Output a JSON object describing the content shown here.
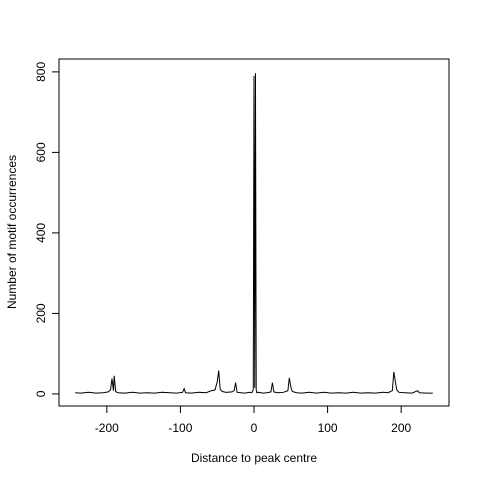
{
  "chart_data": {
    "type": "line",
    "x_label": "Distance to peak centre",
    "y_label": "Number of motif occurrences",
    "color": "#000000",
    "x": [
      -243,
      -235,
      -225,
      -215,
      -205,
      -198,
      -195,
      -193,
      -191,
      -190,
      -188,
      -185,
      -175,
      -165,
      -155,
      -145,
      -135,
      -125,
      -115,
      -105,
      -97,
      -95,
      -93,
      -85,
      -75,
      -65,
      -58,
      -53,
      -50,
      -48,
      -46,
      -43,
      -38,
      -30,
      -27,
      -25,
      -23,
      -18,
      -12,
      -6,
      -3,
      -1,
      0,
      1,
      2,
      3,
      4,
      6,
      12,
      18,
      23,
      25,
      27,
      32,
      40,
      46,
      48,
      50,
      52,
      58,
      65,
      75,
      85,
      95,
      105,
      115,
      125,
      135,
      145,
      155,
      165,
      175,
      182,
      188,
      190,
      192,
      194,
      197,
      205,
      215,
      222,
      225,
      235,
      243
    ],
    "values": [
      3,
      2,
      4,
      2,
      3,
      5,
      10,
      38,
      8,
      45,
      6,
      3,
      2,
      4,
      2,
      3,
      2,
      4,
      3,
      2,
      4,
      13,
      3,
      2,
      4,
      3,
      8,
      10,
      30,
      58,
      12,
      6,
      4,
      5,
      8,
      28,
      4,
      3,
      2,
      4,
      3,
      10,
      790,
      15,
      797,
      10,
      3,
      4,
      2,
      3,
      5,
      28,
      5,
      3,
      4,
      8,
      40,
      18,
      6,
      3,
      2,
      4,
      2,
      4,
      2,
      3,
      2,
      4,
      2,
      3,
      2,
      4,
      3,
      8,
      55,
      32,
      10,
      4,
      3,
      2,
      8,
      3,
      2,
      2
    ],
    "xlim": [
      -265,
      265
    ],
    "ylim": [
      -30,
      832
    ],
    "xticks": [
      -200,
      -100,
      0,
      100,
      200
    ],
    "yticks": [
      0,
      200,
      400,
      600,
      800
    ]
  }
}
